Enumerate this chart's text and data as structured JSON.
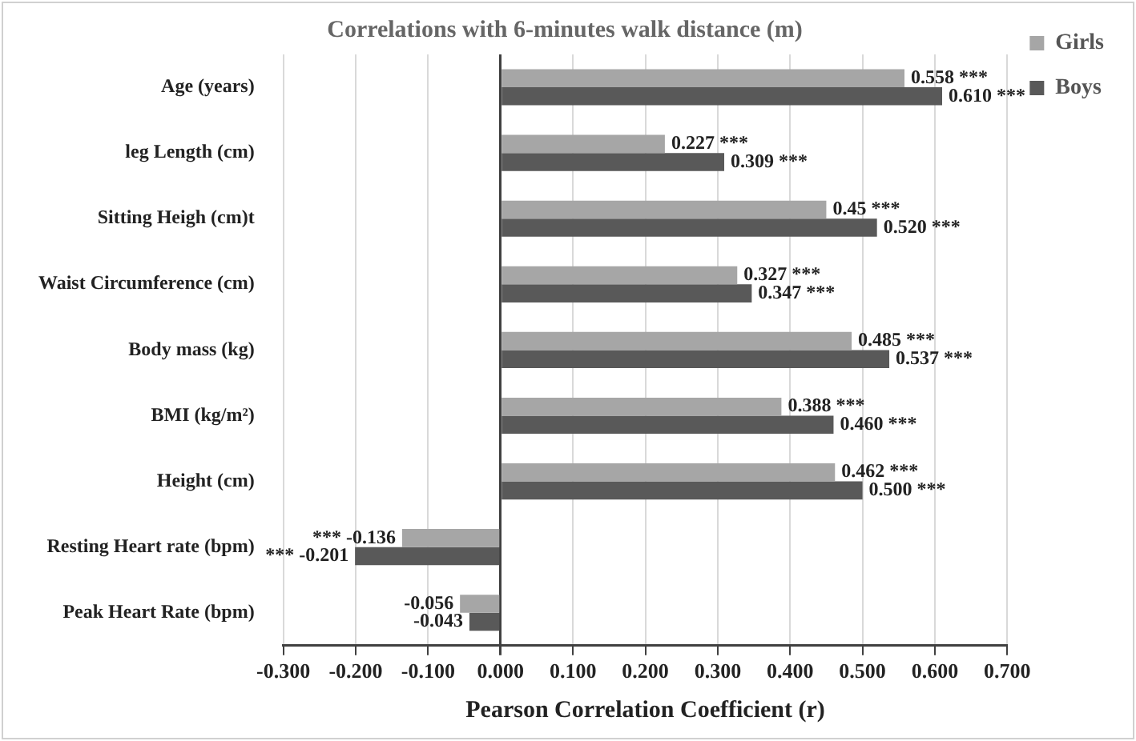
{
  "chart_data": {
    "type": "bar",
    "orientation": "horizontal",
    "title": "Correlations with 6-minutes walk distance (m)",
    "xlabel": "Pearson Correlation Coefficient (r)",
    "categories": [
      "Age (years)",
      "leg Length (cm)",
      "Sitting Heigh (cm)t",
      "Waist Circumference (cm)",
      "Body mass (kg)",
      "BMI (kg/m²)",
      "Height (cm)",
      "Resting Heart rate (bpm)",
      "Peak Heart Rate (bpm)"
    ],
    "series": [
      {
        "name": "Girls",
        "color": "#a6a6a6",
        "values": [
          0.558,
          0.227,
          0.45,
          0.327,
          0.485,
          0.388,
          0.462,
          -0.136,
          -0.056
        ],
        "value_labels": [
          "0.558 ***",
          "0.227 ***",
          "0.45 ***",
          "0.327 ***",
          "0.485 ***",
          "0.388 ***",
          "0.462 ***",
          "*** -0.136",
          "-0.056"
        ]
      },
      {
        "name": "Boys",
        "color": "#595959",
        "values": [
          0.61,
          0.309,
          0.52,
          0.347,
          0.537,
          0.46,
          0.5,
          -0.201,
          -0.043
        ],
        "value_labels": [
          "0.610 ***",
          "0.309 ***",
          "0.520 ***",
          "0.347 ***",
          "0.537 ***",
          "0.460 ***",
          "0.500 ***",
          "*** -0.201",
          "-0.043"
        ]
      }
    ],
    "xlim": [
      -0.3,
      0.7
    ],
    "xticks": [
      {
        "value": -0.3,
        "label": "-0.300"
      },
      {
        "value": -0.2,
        "label": "-0.200"
      },
      {
        "value": -0.1,
        "label": "-0.100"
      },
      {
        "value": 0,
        "label": "0.000"
      },
      {
        "value": 0.1,
        "label": "0.100"
      },
      {
        "value": 0.2,
        "label": "0.200"
      },
      {
        "value": 0.3,
        "label": "0.300"
      },
      {
        "value": 0.4,
        "label": "0.400"
      },
      {
        "value": 0.5,
        "label": "0.500"
      },
      {
        "value": 0.6,
        "label": "0.600"
      },
      {
        "value": 0.7,
        "label": "0.700"
      }
    ],
    "grid": "x",
    "legend": "right"
  }
}
